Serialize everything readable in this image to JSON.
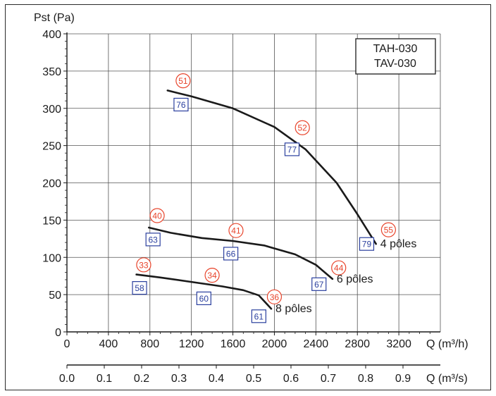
{
  "chart_data": {
    "type": "line",
    "ylabel": "Pst (Pa)",
    "xlabel": "Q (m³/h)",
    "xlabel_secondary": "Q (m³/s)",
    "xlim": [
      0,
      3600
    ],
    "ylim": [
      0,
      400
    ],
    "x_ticks": [
      "0",
      "400",
      "800",
      "1200",
      "1600",
      "2000",
      "2400",
      "2800",
      "3200"
    ],
    "x_ticks_secondary": [
      "0.0",
      "0.1",
      "0.2",
      "0.3",
      "0.4",
      "0.5",
      "0.6",
      "0.7",
      "0.8",
      "0.9"
    ],
    "y_ticks": [
      "0",
      "50",
      "100",
      "150",
      "200",
      "250",
      "300",
      "350",
      "400"
    ],
    "grid": true,
    "legend": {
      "lines": [
        "TAH-030",
        "TAV-030"
      ],
      "placement": "top-right"
    },
    "series": [
      {
        "name": "4 pôles",
        "x": [
          970,
          1200,
          1600,
          2000,
          2300,
          2600,
          2800,
          2980
        ],
        "y": [
          324,
          316,
          300,
          275,
          245,
          200,
          158,
          118
        ]
      },
      {
        "name": "6 pôles",
        "x": [
          790,
          1000,
          1300,
          1600,
          1900,
          2200,
          2400,
          2560
        ],
        "y": [
          140,
          133,
          126,
          122,
          116,
          104,
          90,
          71
        ]
      },
      {
        "name": "8 pôles",
        "x": [
          670,
          900,
          1200,
          1500,
          1700,
          1850,
          1970
        ],
        "y": [
          77,
          73,
          67,
          61,
          56,
          49,
          31
        ]
      }
    ],
    "annotations": [
      {
        "kind": "circle",
        "text": "51",
        "x": 1120,
        "y": 337
      },
      {
        "kind": "circle",
        "text": "52",
        "x": 2270,
        "y": 274
      },
      {
        "kind": "circle",
        "text": "55",
        "x": 3100,
        "y": 137
      },
      {
        "kind": "circle",
        "text": "40",
        "x": 870,
        "y": 156
      },
      {
        "kind": "circle",
        "text": "41",
        "x": 1630,
        "y": 136
      },
      {
        "kind": "circle",
        "text": "44",
        "x": 2620,
        "y": 86
      },
      {
        "kind": "circle",
        "text": "33",
        "x": 740,
        "y": 90
      },
      {
        "kind": "circle",
        "text": "34",
        "x": 1400,
        "y": 76
      },
      {
        "kind": "circle",
        "text": "36",
        "x": 2000,
        "y": 47
      },
      {
        "kind": "box",
        "text": "76",
        "x": 1100,
        "y": 305
      },
      {
        "kind": "box",
        "text": "77",
        "x": 2170,
        "y": 245
      },
      {
        "kind": "box",
        "text": "79",
        "x": 2890,
        "y": 118
      },
      {
        "kind": "box",
        "text": "63",
        "x": 830,
        "y": 124
      },
      {
        "kind": "box",
        "text": "66",
        "x": 1580,
        "y": 105
      },
      {
        "kind": "box",
        "text": "67",
        "x": 2430,
        "y": 64
      },
      {
        "kind": "box",
        "text": "58",
        "x": 700,
        "y": 59
      },
      {
        "kind": "box",
        "text": "60",
        "x": 1320,
        "y": 45
      },
      {
        "kind": "box",
        "text": "61",
        "x": 1850,
        "y": 21
      }
    ],
    "colors": {
      "curve": "#1a1a1a",
      "circle": "#e8442b",
      "box": "#2a3f9e",
      "grid": "#555555"
    }
  }
}
